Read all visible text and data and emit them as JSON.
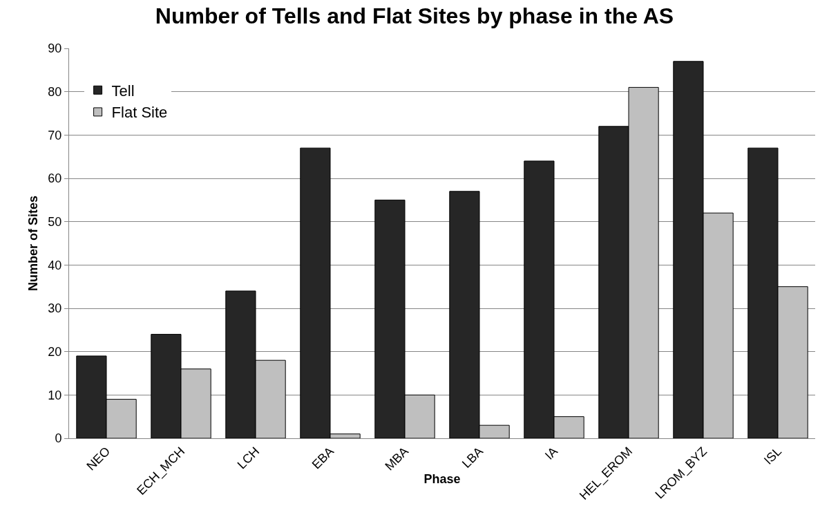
{
  "chart_data": {
    "type": "bar",
    "title": "Number of Tells and Flat Sites by phase in the AS",
    "xlabel": "Phase",
    "ylabel": "Number of Sites",
    "categories": [
      "NEO",
      "ECH_MCH",
      "LCH",
      "EBA",
      "MBA",
      "LBA",
      "IA",
      "HEL_EROM",
      "LROM_BYZ",
      "ISL"
    ],
    "series": [
      {
        "name": "Tell",
        "color": "#262626",
        "values": [
          19,
          24,
          34,
          67,
          55,
          57,
          64,
          72,
          87,
          67
        ]
      },
      {
        "name": "Flat Site",
        "color": "#bfbfbf",
        "values": [
          9,
          16,
          18,
          1,
          10,
          3,
          5,
          81,
          52,
          35
        ]
      }
    ],
    "ylim": [
      0,
      90
    ],
    "yticks": [
      0,
      10,
      20,
      30,
      40,
      50,
      60,
      70,
      80,
      90
    ],
    "grid": "y",
    "legend": "top left"
  }
}
